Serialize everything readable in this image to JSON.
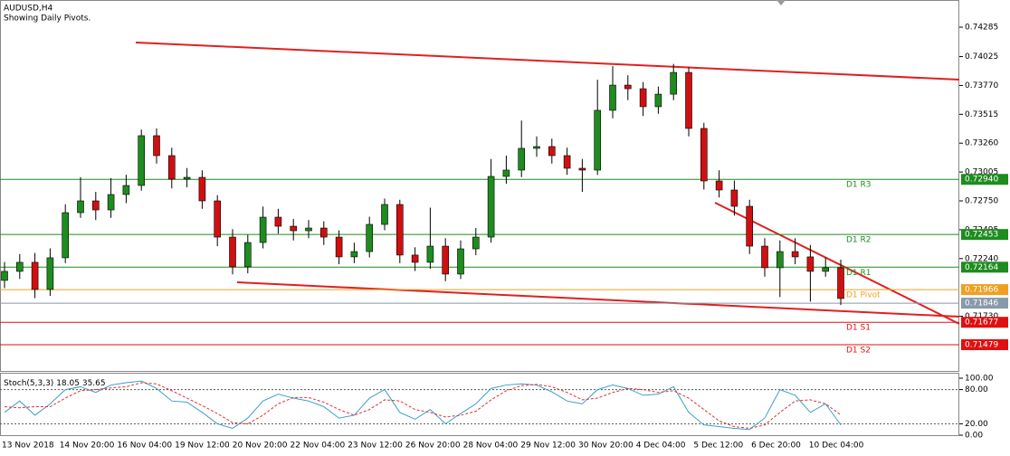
{
  "chart_data": [
    {
      "type": "candlestick",
      "title": "AUDUSD,H4",
      "subtitle": "Showing Daily Pivots.",
      "time_labels": [
        "13 Nov 2018",
        "14 Nov 20:00",
        "16 Nov 04:00",
        "19 Nov 12:00",
        "20 Nov 20:00",
        "22 Nov 04:00",
        "23 Nov 12:00",
        "26 Nov 20:00",
        "28 Nov 04:00",
        "29 Nov 12:00",
        "30 Nov 20:00",
        "4 Dec 04:00",
        "5 Dec 12:00",
        "6 Dec 20:00",
        "10 Dec 04:00"
      ],
      "open": [
        0.72047,
        0.72127,
        0.72207,
        0.71967,
        0.72247,
        0.72646,
        0.7275,
        0.7267,
        0.72806,
        0.72886,
        0.73326,
        0.7315,
        0.72942,
        0.72958,
        0.7275,
        0.7243,
        0.72167,
        0.72382,
        0.72606,
        0.72526,
        0.72486,
        0.7251,
        0.7243,
        0.72255,
        0.72302,
        0.72542,
        0.72718,
        0.72271,
        0.72207,
        0.7235,
        0.72103,
        0.72326,
        0.7243,
        0.72966,
        0.73022,
        0.73214,
        0.7323,
        0.7315,
        0.73038,
        0.73022,
        0.7355,
        0.73773,
        0.73741,
        0.73582,
        0.73693,
        0.73885,
        0.7339,
        0.72926,
        0.72846,
        0.72702,
        0.7235,
        0.72159,
        0.72302,
        0.72255,
        0.72127,
        0.72159
      ],
      "high": [
        0.7221,
        0.7228,
        0.7229,
        0.7233,
        0.7272,
        0.7296,
        0.7283,
        0.7295,
        0.7298,
        0.7338,
        0.7339,
        0.7322,
        0.7304,
        0.7302,
        0.728,
        0.725,
        0.7245,
        0.727,
        0.7268,
        0.7259,
        0.7258,
        0.7257,
        0.7249,
        0.7238,
        0.7261,
        0.7277,
        0.7276,
        0.7234,
        0.7269,
        0.7242,
        0.724,
        0.7251,
        0.7312,
        0.7315,
        0.7346,
        0.7332,
        0.733,
        0.7322,
        0.7312,
        0.7382,
        0.7394,
        0.7386,
        0.738,
        0.7376,
        0.7396,
        0.7393,
        0.7344,
        0.7302,
        0.7293,
        0.7276,
        0.7242,
        0.724,
        0.7242,
        0.7236,
        0.7225,
        0.7223
      ],
      "low": [
        0.7198,
        0.7206,
        0.7189,
        0.7191,
        0.722,
        0.726,
        0.7258,
        0.726,
        0.7273,
        0.7284,
        0.7308,
        0.7286,
        0.7287,
        0.7268,
        0.7235,
        0.721,
        0.7211,
        0.7233,
        0.7246,
        0.724,
        0.7242,
        0.7236,
        0.7219,
        0.722,
        0.7225,
        0.7249,
        0.722,
        0.7213,
        0.7215,
        0.7204,
        0.7206,
        0.7227,
        0.7238,
        0.729,
        0.7296,
        0.7314,
        0.7308,
        0.7298,
        0.7283,
        0.7298,
        0.7348,
        0.7364,
        0.735,
        0.7352,
        0.7364,
        0.7332,
        0.7285,
        0.7278,
        0.7262,
        0.7228,
        0.7208,
        0.719,
        0.7219,
        0.7186,
        0.7208,
        0.7183
      ],
      "close": [
        0.72127,
        0.72207,
        0.71967,
        0.72247,
        0.72646,
        0.7275,
        0.7267,
        0.72806,
        0.72886,
        0.73326,
        0.7315,
        0.72942,
        0.72958,
        0.7275,
        0.7243,
        0.72167,
        0.72382,
        0.72606,
        0.72526,
        0.72486,
        0.7251,
        0.7243,
        0.72255,
        0.72302,
        0.72542,
        0.72718,
        0.72271,
        0.72207,
        0.7235,
        0.72103,
        0.72326,
        0.7243,
        0.72966,
        0.73022,
        0.73214,
        0.7323,
        0.7315,
        0.73038,
        0.73022,
        0.7355,
        0.73773,
        0.73741,
        0.73582,
        0.73693,
        0.73885,
        0.7339,
        0.72926,
        0.72846,
        0.72702,
        0.7235,
        0.72159,
        0.72302,
        0.72255,
        0.72127,
        0.72159,
        0.71887
      ],
      "up_color": "#1e8c1e",
      "down_color": "#d01010",
      "ylim": [
        0.71247,
        0.74525
      ],
      "yticks": [
        {
          "value": 0.74285,
          "label": "0.74285"
        },
        {
          "value": 0.74025,
          "label": "0.74025"
        },
        {
          "value": 0.7377,
          "label": "0.73770"
        },
        {
          "value": 0.73515,
          "label": "0.73515"
        },
        {
          "value": 0.7326,
          "label": "0.73260"
        },
        {
          "value": 0.73005,
          "label": "0.73005"
        },
        {
          "value": 0.7275,
          "label": "0.72750"
        },
        {
          "value": 0.72495,
          "label": "0.72495"
        },
        {
          "value": 0.7224,
          "label": "0.72240"
        },
        {
          "value": 0.7173,
          "label": "0.71730"
        }
      ],
      "pivots": [
        {
          "name": "D1 R3",
          "value": 0.7294,
          "label": "0.72940",
          "color": "#1e8c1e"
        },
        {
          "name": "D1 R2",
          "value": 0.72453,
          "label": "0.72453",
          "color": "#1e8c1e"
        },
        {
          "name": "D1 R1",
          "value": 0.72164,
          "label": "0.72164",
          "color": "#1e8c1e"
        },
        {
          "name": "D1 Pivot",
          "value": 0.71966,
          "label": "0.71966",
          "color": "#f0a020"
        },
        {
          "name": "D1 S1",
          "value": 0.71677,
          "label": "0.71677",
          "color": "#e01010"
        },
        {
          "name": "D1 S2",
          "value": 0.71479,
          "label": "0.71479",
          "color": "#e01010"
        }
      ],
      "current_price": {
        "value": 0.71846,
        "label": "0.71846",
        "color": "#8899aa"
      }
    },
    {
      "type": "line",
      "title": "Stoch(5,3,3)",
      "series": [
        {
          "name": "main",
          "color": "#3aa0c8",
          "values": [
            40,
            60,
            35,
            55,
            80,
            85,
            75,
            88,
            92,
            95,
            82,
            60,
            58,
            40,
            20,
            12,
            30,
            60,
            72,
            65,
            60,
            50,
            30,
            35,
            65,
            80,
            40,
            28,
            45,
            20,
            38,
            55,
            82,
            88,
            90,
            88,
            76,
            60,
            55,
            80,
            88,
            82,
            70,
            72,
            85,
            40,
            18,
            15,
            12,
            10,
            30,
            80,
            70,
            40,
            55,
            18.05
          ]
        },
        {
          "name": "signal",
          "color": "#e03030",
          "values": [
            50,
            48,
            50,
            50,
            65,
            78,
            80,
            83,
            85,
            92,
            90,
            78,
            65,
            52,
            38,
            22,
            20,
            35,
            55,
            66,
            66,
            58,
            45,
            35,
            45,
            62,
            60,
            45,
            40,
            32,
            35,
            42,
            62,
            78,
            87,
            89,
            85,
            75,
            62,
            65,
            75,
            82,
            80,
            75,
            78,
            65,
            45,
            25,
            15,
            12,
            18,
            40,
            60,
            62,
            55,
            35.65
          ]
        }
      ],
      "ylim": [
        0,
        100
      ],
      "yticks": [
        {
          "value": 100,
          "label": "100.00"
        },
        {
          "value": 80,
          "label": "80.00"
        },
        {
          "value": 20,
          "label": "20.00"
        },
        {
          "value": 0,
          "label": "0.00"
        }
      ]
    }
  ]
}
